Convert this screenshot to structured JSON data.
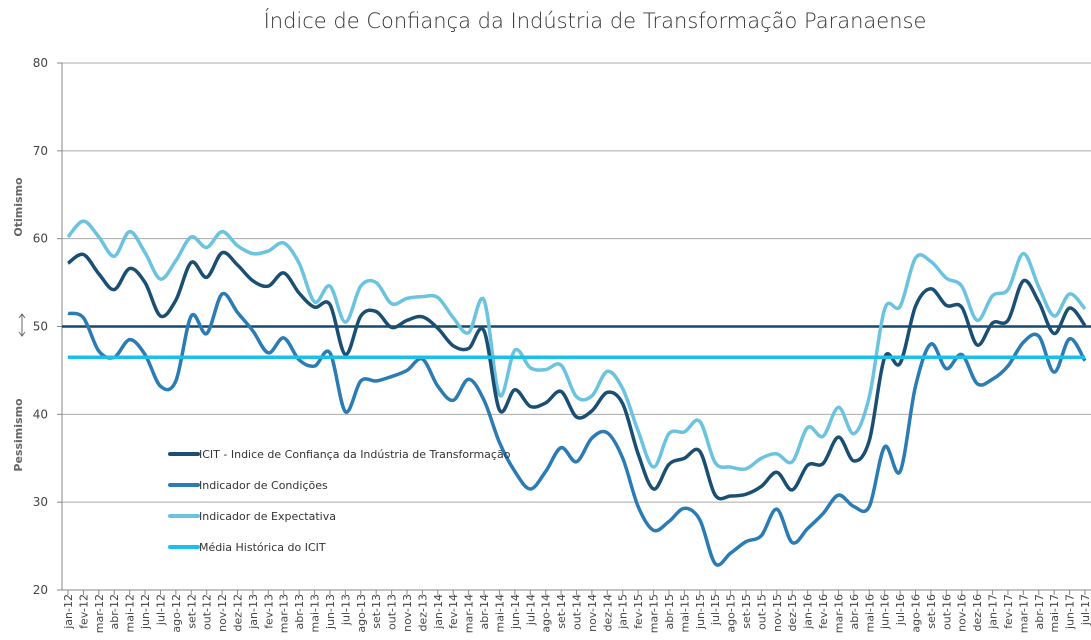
{
  "chart_data": {
    "type": "line",
    "title": "Índice de Confiança da Indústria de Transformação Paranaense",
    "y_labels": {
      "upper": "Otimismo",
      "lower": "Pessimismo"
    },
    "reference_line": {
      "value": 50,
      "color": "#174a6a"
    },
    "categories": [
      "jan-12",
      "fev-12",
      "mar-12",
      "abr-12",
      "mai-12",
      "jun-12",
      "jul-12",
      "ago-12",
      "set-12",
      "out-12",
      "nov-12",
      "dez-12",
      "jan-13",
      "fev-13",
      "mar-13",
      "abr-13",
      "mai-13",
      "jun-13",
      "jul-13",
      "ago-13",
      "set-13",
      "out-13",
      "nov-13",
      "dez-13",
      "jan-14",
      "fev-14",
      "mar-14",
      "abr-14",
      "mai-14",
      "jun-14",
      "jul-14",
      "ago-14",
      "set-14",
      "out-14",
      "nov-14",
      "dez-14",
      "jan-15",
      "fev-15",
      "mar-15",
      "abr-15",
      "mai-15",
      "jun-15",
      "jul-15",
      "ago-15",
      "set-15",
      "out-15",
      "nov-15",
      "dez-15",
      "jan-16",
      "fev-16",
      "mar-16",
      "abr-16",
      "mai-16",
      "jun-16",
      "jul-16",
      "ago-16",
      "set-16",
      "out-16",
      "nov-16",
      "dez-16",
      "jan-17",
      "fev-17",
      "mar-17",
      "abr-17",
      "mai-17",
      "jun-17",
      "jul-17"
    ],
    "series": [
      {
        "name": "ICIT - Indice de Confiança da Indústria de Transformação",
        "color": "#1a4f73",
        "values": [
          57.2,
          58.2,
          56,
          54.2,
          56.6,
          55,
          51.2,
          53,
          57.3,
          55.6,
          58.4,
          57,
          55.2,
          54.6,
          56.1,
          53.8,
          52.2,
          52.5,
          46.8,
          51.2,
          51.7,
          49.9,
          50.7,
          51.1,
          49.8,
          47.8,
          47.5,
          49.5,
          40.5,
          42.8,
          40.9,
          41.3,
          42.6,
          39.7,
          40.4,
          42.5,
          41.2,
          35.5,
          31.5,
          34.3,
          35,
          35.8,
          30.8,
          30.7,
          30.9,
          31.8,
          33.4,
          31.4,
          34.2,
          34.4,
          37.4,
          34.7,
          37,
          46.5,
          45.8,
          52.3,
          54.3,
          52.4,
          52.2,
          47.9,
          50.4,
          50.7,
          55.2,
          52.8,
          49.2,
          52.1,
          50.1
        ]
      },
      {
        "name": "Indicador de Condições",
        "color": "#2b7bb5",
        "values": [
          51.5,
          51,
          47.2,
          46.5,
          48.5,
          46.8,
          43.2,
          43.8,
          51.2,
          49.2,
          53.7,
          51.6,
          49.5,
          47,
          48.7,
          46.2,
          45.5,
          47,
          40.3,
          43.8,
          43.8,
          44.3,
          45,
          46.3,
          43.2,
          41.6,
          44,
          41.6,
          36.8,
          33.5,
          31.5,
          33.5,
          36.2,
          34.6,
          37.3,
          37.9,
          35,
          29.5,
          26.8,
          27.8,
          29.3,
          28,
          23,
          24.2,
          25.5,
          26.2,
          29.2,
          25.4,
          27,
          28.7,
          30.8,
          29.5,
          29.5,
          36.3,
          33.5,
          43.2,
          48,
          45.2,
          46.8,
          43.5,
          44,
          45.5,
          48.2,
          48.9,
          44.8,
          48.6,
          46.1
        ]
      },
      {
        "name": "Indicador de Expectativa",
        "color": "#6bc3e0",
        "values": [
          60.2,
          62,
          60.2,
          58,
          60.8,
          58.4,
          55.4,
          57.5,
          60.2,
          59,
          60.8,
          59.2,
          58.3,
          58.6,
          59.5,
          57.2,
          52.8,
          54.6,
          50.5,
          54.6,
          55,
          52.6,
          53.2,
          53.4,
          53.3,
          51,
          49.3,
          53,
          42.2,
          47.3,
          45.3,
          45.1,
          45.6,
          42,
          42.1,
          44.9,
          42.9,
          38.1,
          34,
          37.8,
          38,
          39.2,
          34.5,
          34,
          33.8,
          35,
          35.5,
          34.6,
          38.5,
          37.5,
          40.8,
          37.8,
          42,
          52,
          52.3,
          57.8,
          57.4,
          55.5,
          54.6,
          50.7,
          53.5,
          54.2,
          58.3,
          54.5,
          51.2,
          53.7,
          52
        ]
      },
      {
        "name": "Média Histórica do ICIT",
        "color": "#19c1ea",
        "values": [
          46.5,
          46.5,
          46.5,
          46.5,
          46.5,
          46.5,
          46.5,
          46.5,
          46.5,
          46.5,
          46.5,
          46.5,
          46.5,
          46.5,
          46.5,
          46.5,
          46.5,
          46.5,
          46.5,
          46.5,
          46.5,
          46.5,
          46.5,
          46.5,
          46.5,
          46.5,
          46.5,
          46.5,
          46.5,
          46.5,
          46.5,
          46.5,
          46.5,
          46.5,
          46.5,
          46.5,
          46.5,
          46.5,
          46.5,
          46.5,
          46.5,
          46.5,
          46.5,
          46.5,
          46.5,
          46.5,
          46.5,
          46.5,
          46.5,
          46.5,
          46.5,
          46.5,
          46.5,
          46.5,
          46.5,
          46.5,
          46.5,
          46.5,
          46.5,
          46.5,
          46.5,
          46.5,
          46.5,
          46.5,
          46.5,
          46.5,
          46.5
        ]
      }
    ],
    "ylim": [
      20,
      80
    ],
    "yticks": [
      20,
      30,
      40,
      50,
      60,
      70,
      80
    ],
    "grid": true
  }
}
